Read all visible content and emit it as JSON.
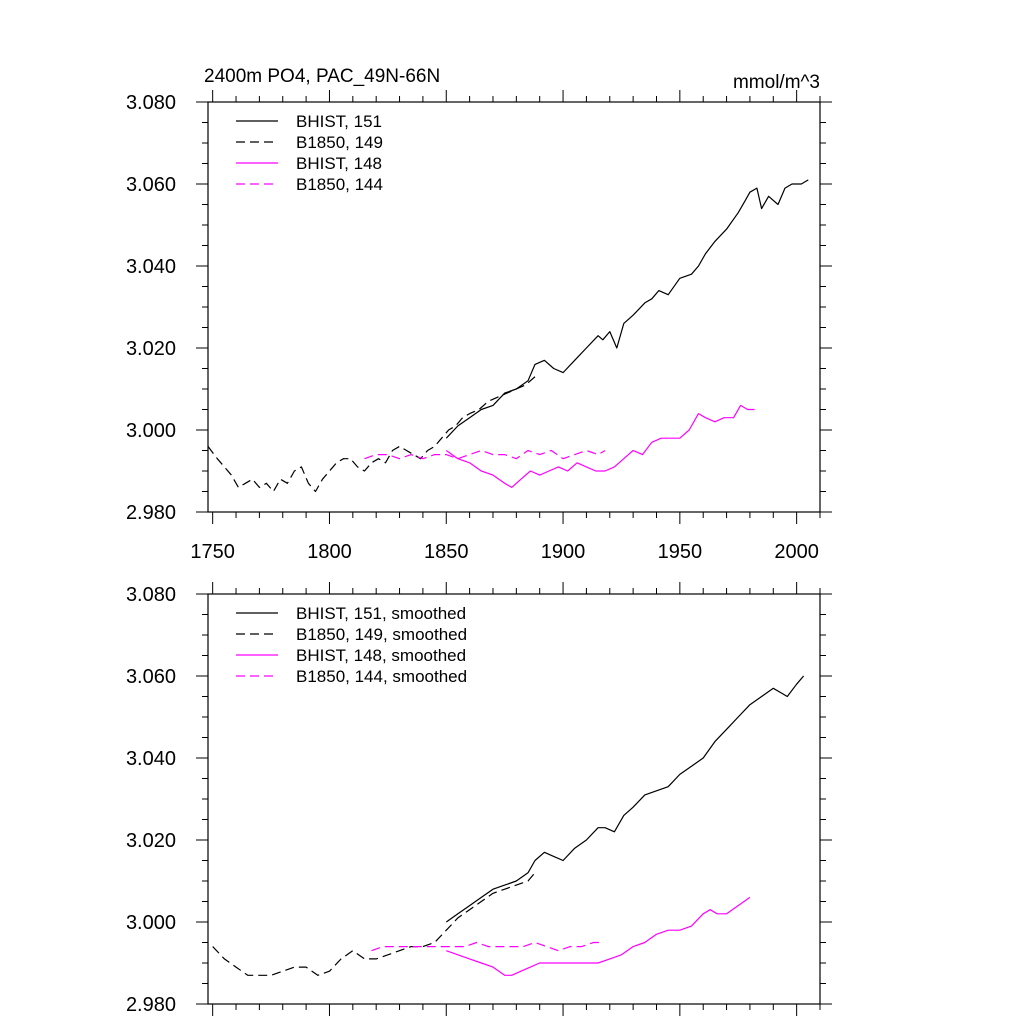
{
  "chart_data": [
    {
      "type": "line",
      "title": "2400m PO4, PAC_49N-66N",
      "units": "mmol/m^3",
      "xlabel": "",
      "ylabel": "",
      "xlim": [
        1748,
        2010
      ],
      "ylim": [
        2.98,
        3.08
      ],
      "x_ticks": [
        1750,
        1800,
        1850,
        1900,
        1950,
        2000
      ],
      "x_tick_labels": [
        "1750",
        "1800",
        "1850",
        "1900",
        "1950",
        "2000"
      ],
      "y_ticks": [
        2.98,
        3.0,
        3.02,
        3.04,
        3.06,
        3.08
      ],
      "y_tick_labels": [
        "2.980",
        "3.000",
        "3.020",
        "3.040",
        "3.060",
        "3.080"
      ],
      "legend_position": "top-left",
      "grid": false,
      "series": [
        {
          "name": "BHIST, 151",
          "color": "#000000",
          "dash": "solid",
          "x": [
            1850,
            1855,
            1860,
            1865,
            1870,
            1875,
            1880,
            1885,
            1888,
            1892,
            1896,
            1900,
            1905,
            1910,
            1915,
            1917,
            1920,
            1923,
            1926,
            1930,
            1935,
            1938,
            1941,
            1945,
            1950,
            1955,
            1958,
            1961,
            1965,
            1970,
            1975,
            1978,
            1980,
            1983,
            1985,
            1988,
            1992,
            1995,
            1998,
            2002,
            2005
          ],
          "y": [
            2.998,
            3.001,
            3.003,
            3.005,
            3.006,
            3.009,
            3.01,
            3.012,
            3.016,
            3.017,
            3.015,
            3.014,
            3.017,
            3.02,
            3.023,
            3.022,
            3.024,
            3.02,
            3.026,
            3.028,
            3.031,
            3.032,
            3.034,
            3.033,
            3.037,
            3.038,
            3.04,
            3.043,
            3.046,
            3.049,
            3.053,
            3.056,
            3.058,
            3.059,
            3.054,
            3.057,
            3.055,
            3.059,
            3.06,
            3.06,
            3.061
          ]
        },
        {
          "name": "B1850, 149",
          "color": "#000000",
          "dash": "dashed",
          "x": [
            1748,
            1752,
            1755,
            1758,
            1761,
            1764,
            1767,
            1770,
            1773,
            1776,
            1779,
            1782,
            1785,
            1788,
            1791,
            1794,
            1797,
            1800,
            1803,
            1806,
            1809,
            1812,
            1815,
            1818,
            1821,
            1824,
            1827,
            1830,
            1833,
            1836,
            1839,
            1842,
            1845,
            1848,
            1851,
            1854,
            1857,
            1860,
            1864,
            1868,
            1872,
            1876,
            1880,
            1884,
            1888
          ],
          "y": [
            2.996,
            2.993,
            2.991,
            2.989,
            2.986,
            2.987,
            2.988,
            2.986,
            2.987,
            2.985,
            2.988,
            2.987,
            2.99,
            2.991,
            2.987,
            2.985,
            2.988,
            2.99,
            2.992,
            2.993,
            2.993,
            2.991,
            2.99,
            2.992,
            2.993,
            2.992,
            2.995,
            2.996,
            2.995,
            2.994,
            2.993,
            2.995,
            2.996,
            2.998,
            3.0,
            3.001,
            3.003,
            3.004,
            3.005,
            3.007,
            3.008,
            3.009,
            3.01,
            3.011,
            3.013
          ]
        },
        {
          "name": "BHIST, 148",
          "color": "#ff00ff",
          "dash": "solid",
          "x": [
            1850,
            1855,
            1860,
            1865,
            1870,
            1875,
            1878,
            1882,
            1886,
            1890,
            1894,
            1898,
            1902,
            1906,
            1910,
            1914,
            1918,
            1922,
            1926,
            1930,
            1934,
            1938,
            1942,
            1946,
            1950,
            1954,
            1958,
            1961,
            1965,
            1969,
            1973,
            1976,
            1979,
            1982
          ],
          "y": [
            2.995,
            2.993,
            2.992,
            2.99,
            2.989,
            2.987,
            2.986,
            2.988,
            2.99,
            2.989,
            2.99,
            2.991,
            2.99,
            2.992,
            2.991,
            2.99,
            2.99,
            2.991,
            2.993,
            2.995,
            2.994,
            2.997,
            2.998,
            2.998,
            2.998,
            3.0,
            3.004,
            3.003,
            3.002,
            3.003,
            3.003,
            3.006,
            3.005,
            3.005
          ]
        },
        {
          "name": "B1850, 144",
          "color": "#ff00ff",
          "dash": "dashed",
          "x": [
            1815,
            1820,
            1825,
            1830,
            1835,
            1840,
            1845,
            1850,
            1855,
            1860,
            1865,
            1870,
            1875,
            1880,
            1885,
            1890,
            1895,
            1900,
            1905,
            1910,
            1915,
            1918
          ],
          "y": [
            2.993,
            2.994,
            2.994,
            2.993,
            2.994,
            2.993,
            2.994,
            2.994,
            2.993,
            2.994,
            2.995,
            2.994,
            2.994,
            2.993,
            2.995,
            2.994,
            2.995,
            2.993,
            2.994,
            2.995,
            2.994,
            2.995
          ]
        }
      ]
    },
    {
      "type": "line",
      "title": "",
      "xlabel": "",
      "ylabel": "",
      "xlim": [
        1748,
        2010
      ],
      "ylim": [
        2.98,
        3.08
      ],
      "x_ticks": [
        1750,
        1800,
        1850,
        1900,
        1950,
        2000
      ],
      "y_ticks": [
        2.98,
        3.0,
        3.02,
        3.04,
        3.06,
        3.08
      ],
      "y_tick_labels": [
        "2.980",
        "3.000",
        "3.020",
        "3.040",
        "3.060",
        "3.080"
      ],
      "legend_position": "top-left",
      "grid": false,
      "series": [
        {
          "name": "BHIST, 151, smoothed",
          "color": "#000000",
          "dash": "solid",
          "x": [
            1850,
            1855,
            1860,
            1865,
            1870,
            1875,
            1880,
            1885,
            1888,
            1892,
            1896,
            1900,
            1905,
            1910,
            1915,
            1918,
            1922,
            1926,
            1930,
            1935,
            1940,
            1945,
            1950,
            1955,
            1960,
            1965,
            1970,
            1975,
            1980,
            1985,
            1990,
            1993,
            1996,
            2000,
            2003
          ],
          "y": [
            3.0,
            3.002,
            3.004,
            3.006,
            3.008,
            3.009,
            3.01,
            3.012,
            3.015,
            3.017,
            3.016,
            3.015,
            3.018,
            3.02,
            3.023,
            3.023,
            3.022,
            3.026,
            3.028,
            3.031,
            3.032,
            3.033,
            3.036,
            3.038,
            3.04,
            3.044,
            3.047,
            3.05,
            3.053,
            3.055,
            3.057,
            3.056,
            3.055,
            3.058,
            3.06
          ]
        },
        {
          "name": "B1850, 149, smoothed",
          "color": "#000000",
          "dash": "dashed",
          "x": [
            1750,
            1755,
            1760,
            1765,
            1770,
            1775,
            1780,
            1785,
            1790,
            1795,
            1800,
            1805,
            1810,
            1815,
            1820,
            1825,
            1830,
            1835,
            1840,
            1845,
            1850,
            1855,
            1860,
            1865,
            1870,
            1875,
            1880,
            1885,
            1888
          ],
          "y": [
            2.994,
            2.991,
            2.989,
            2.987,
            2.987,
            2.987,
            2.988,
            2.989,
            2.989,
            2.987,
            2.988,
            2.991,
            2.993,
            2.991,
            2.991,
            2.992,
            2.993,
            2.994,
            2.994,
            2.995,
            2.998,
            3.001,
            3.003,
            3.005,
            3.007,
            3.008,
            3.009,
            3.01,
            3.012
          ]
        },
        {
          "name": "BHIST, 148, smoothed",
          "color": "#ff00ff",
          "dash": "solid",
          "x": [
            1850,
            1855,
            1860,
            1865,
            1870,
            1875,
            1878,
            1882,
            1886,
            1890,
            1895,
            1900,
            1905,
            1910,
            1915,
            1920,
            1925,
            1930,
            1935,
            1940,
            1945,
            1950,
            1955,
            1960,
            1963,
            1966,
            1970,
            1975,
            1980
          ],
          "y": [
            2.993,
            2.992,
            2.991,
            2.99,
            2.989,
            2.987,
            2.987,
            2.988,
            2.989,
            2.99,
            2.99,
            2.99,
            2.99,
            2.99,
            2.99,
            2.991,
            2.992,
            2.994,
            2.995,
            2.997,
            2.998,
            2.998,
            2.999,
            3.002,
            3.003,
            3.002,
            3.002,
            3.004,
            3.006
          ]
        },
        {
          "name": "B1850, 144, smoothed",
          "color": "#ff00ff",
          "dash": "dashed",
          "x": [
            1818,
            1823,
            1828,
            1833,
            1838,
            1843,
            1848,
            1853,
            1858,
            1863,
            1868,
            1873,
            1878,
            1883,
            1888,
            1893,
            1898,
            1903,
            1908,
            1913,
            1917
          ],
          "y": [
            2.993,
            2.994,
            2.994,
            2.994,
            2.994,
            2.994,
            2.994,
            2.994,
            2.994,
            2.995,
            2.994,
            2.994,
            2.994,
            2.994,
            2.995,
            2.994,
            2.993,
            2.994,
            2.994,
            2.995,
            2.995
          ]
        }
      ]
    }
  ]
}
